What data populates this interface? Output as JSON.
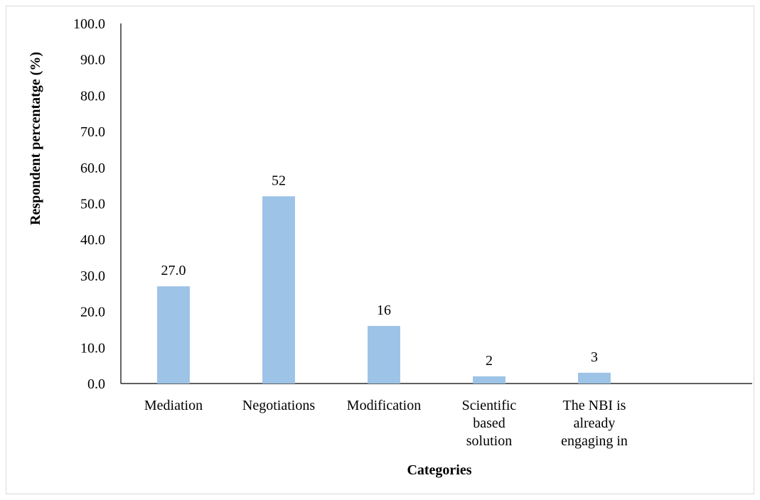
{
  "chart_data": {
    "type": "bar",
    "categories": [
      "Mediation",
      "Negotiations",
      "Modification",
      "Scientific based solution",
      "The NBI is already engaging in",
      null
    ],
    "values": [
      27,
      52,
      16,
      2,
      3,
      null
    ],
    "value_labels": [
      "27.0",
      "52",
      "16",
      "2",
      "3",
      null
    ],
    "color": "#9dc3e6",
    "x_label": "Categories",
    "y_label": "Respondent percentatge (%)",
    "ylim": [
      0,
      100
    ],
    "yticks": [
      {
        "value": 0,
        "label": "0.0"
      },
      {
        "value": 10,
        "label": "10.0"
      },
      {
        "value": 20,
        "label": "20.0"
      },
      {
        "value": 30,
        "label": "30.0"
      },
      {
        "value": 40,
        "label": "40.0"
      },
      {
        "value": 50,
        "label": "50.0"
      },
      {
        "value": 60,
        "label": "60.0"
      },
      {
        "value": 70,
        "label": "70.0"
      },
      {
        "value": 80,
        "label": "80.0"
      },
      {
        "value": 90,
        "label": "90.0"
      },
      {
        "value": 100,
        "label": "100.0"
      }
    ],
    "grid": false
  }
}
